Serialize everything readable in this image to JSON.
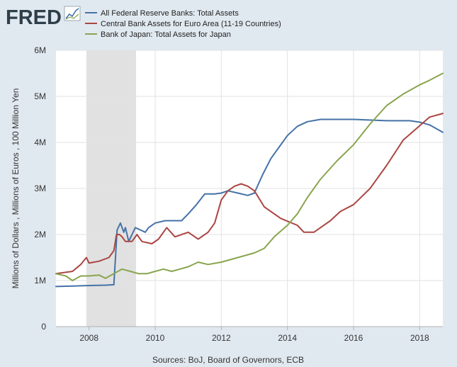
{
  "logo": {
    "text": "FRED",
    "mark": "fred-trend-chart-icon"
  },
  "chart_data": {
    "type": "line",
    "title": "",
    "xlabel": "",
    "ylabel": "Millions of Dollars , Millions of Euros , 100 Million Yen",
    "source": "Sources: BoJ, Board of Governors, ECB",
    "xlim": [
      2007.0,
      2018.7
    ],
    "ylim": [
      0,
      6000000
    ],
    "x_ticks": [
      2008,
      2010,
      2012,
      2014,
      2016,
      2018
    ],
    "x_tick_labels": [
      "2008",
      "2010",
      "2012",
      "2014",
      "2016",
      "2018"
    ],
    "y_ticks": [
      0,
      1000000,
      2000000,
      3000000,
      4000000,
      5000000,
      6000000
    ],
    "y_tick_labels": [
      "0",
      "1M",
      "2M",
      "3M",
      "4M",
      "5M",
      "6M"
    ],
    "grid": true,
    "legend_position": "top-left",
    "recessions": [
      [
        2007.92,
        2009.42
      ]
    ],
    "colors": {
      "background": "#e1e9f0",
      "plot_background": "#ffffff",
      "gridline": "#e2e2e2",
      "recession": "#e1e1e1"
    },
    "series": [
      {
        "name": "All Federal Reserve Banks: Total Assets",
        "color": "#4572a7",
        "points": [
          [
            2007.0,
            870000
          ],
          [
            2007.5,
            880000
          ],
          [
            2007.92,
            890000
          ],
          [
            2008.5,
            900000
          ],
          [
            2008.75,
            910000
          ],
          [
            2008.8,
            1500000
          ],
          [
            2008.85,
            2100000
          ],
          [
            2008.95,
            2250000
          ],
          [
            2009.05,
            2050000
          ],
          [
            2009.1,
            2150000
          ],
          [
            2009.2,
            1850000
          ],
          [
            2009.3,
            2000000
          ],
          [
            2009.4,
            2150000
          ],
          [
            2009.55,
            2100000
          ],
          [
            2009.7,
            2050000
          ],
          [
            2009.8,
            2150000
          ],
          [
            2010.0,
            2250000
          ],
          [
            2010.3,
            2300000
          ],
          [
            2010.8,
            2300000
          ],
          [
            2011.0,
            2450000
          ],
          [
            2011.25,
            2650000
          ],
          [
            2011.5,
            2880000
          ],
          [
            2011.8,
            2880000
          ],
          [
            2012.0,
            2900000
          ],
          [
            2012.2,
            2950000
          ],
          [
            2012.5,
            2900000
          ],
          [
            2012.8,
            2850000
          ],
          [
            2013.0,
            2900000
          ],
          [
            2013.25,
            3300000
          ],
          [
            2013.5,
            3650000
          ],
          [
            2013.75,
            3900000
          ],
          [
            2014.0,
            4150000
          ],
          [
            2014.3,
            4350000
          ],
          [
            2014.6,
            4450000
          ],
          [
            2015.0,
            4500000
          ],
          [
            2016.0,
            4500000
          ],
          [
            2017.0,
            4470000
          ],
          [
            2017.7,
            4470000
          ],
          [
            2018.0,
            4440000
          ],
          [
            2018.3,
            4380000
          ],
          [
            2018.7,
            4220000
          ]
        ]
      },
      {
        "name": "Central Bank Assets for Euro Area (11-19 Countries)",
        "color": "#aa4643",
        "points": [
          [
            2007.0,
            1150000
          ],
          [
            2007.5,
            1200000
          ],
          [
            2007.75,
            1350000
          ],
          [
            2007.92,
            1500000
          ],
          [
            2008.0,
            1380000
          ],
          [
            2008.3,
            1420000
          ],
          [
            2008.6,
            1500000
          ],
          [
            2008.75,
            1650000
          ],
          [
            2008.83,
            2000000
          ],
          [
            2008.92,
            2000000
          ],
          [
            2009.0,
            1950000
          ],
          [
            2009.1,
            1850000
          ],
          [
            2009.3,
            1850000
          ],
          [
            2009.45,
            2000000
          ],
          [
            2009.6,
            1850000
          ],
          [
            2009.9,
            1800000
          ],
          [
            2010.1,
            1900000
          ],
          [
            2010.35,
            2150000
          ],
          [
            2010.6,
            1950000
          ],
          [
            2011.0,
            2050000
          ],
          [
            2011.3,
            1900000
          ],
          [
            2011.6,
            2050000
          ],
          [
            2011.8,
            2250000
          ],
          [
            2012.0,
            2750000
          ],
          [
            2012.2,
            2950000
          ],
          [
            2012.4,
            3050000
          ],
          [
            2012.6,
            3100000
          ],
          [
            2012.8,
            3050000
          ],
          [
            2013.0,
            2950000
          ],
          [
            2013.3,
            2600000
          ],
          [
            2013.8,
            2350000
          ],
          [
            2014.3,
            2200000
          ],
          [
            2014.5,
            2050000
          ],
          [
            2014.8,
            2050000
          ],
          [
            2015.0,
            2150000
          ],
          [
            2015.3,
            2300000
          ],
          [
            2015.6,
            2500000
          ],
          [
            2016.0,
            2650000
          ],
          [
            2016.5,
            3000000
          ],
          [
            2017.0,
            3500000
          ],
          [
            2017.5,
            4050000
          ],
          [
            2017.9,
            4300000
          ],
          [
            2018.3,
            4550000
          ],
          [
            2018.7,
            4630000
          ]
        ]
      },
      {
        "name": "Bank of Japan: Total Assets for Japan",
        "color": "#89a54e",
        "points": [
          [
            2007.0,
            1150000
          ],
          [
            2007.3,
            1100000
          ],
          [
            2007.5,
            1000000
          ],
          [
            2007.75,
            1100000
          ],
          [
            2008.0,
            1100000
          ],
          [
            2008.3,
            1120000
          ],
          [
            2008.5,
            1050000
          ],
          [
            2008.75,
            1150000
          ],
          [
            2009.0,
            1250000
          ],
          [
            2009.25,
            1200000
          ],
          [
            2009.5,
            1150000
          ],
          [
            2009.75,
            1150000
          ],
          [
            2010.0,
            1200000
          ],
          [
            2010.25,
            1250000
          ],
          [
            2010.5,
            1200000
          ],
          [
            2010.75,
            1250000
          ],
          [
            2011.0,
            1300000
          ],
          [
            2011.3,
            1400000
          ],
          [
            2011.6,
            1350000
          ],
          [
            2012.0,
            1400000
          ],
          [
            2012.5,
            1500000
          ],
          [
            2013.0,
            1600000
          ],
          [
            2013.3,
            1700000
          ],
          [
            2013.6,
            1950000
          ],
          [
            2014.0,
            2200000
          ],
          [
            2014.3,
            2450000
          ],
          [
            2014.6,
            2800000
          ],
          [
            2015.0,
            3200000
          ],
          [
            2015.5,
            3600000
          ],
          [
            2016.0,
            3950000
          ],
          [
            2016.5,
            4400000
          ],
          [
            2017.0,
            4800000
          ],
          [
            2017.5,
            5050000
          ],
          [
            2018.0,
            5250000
          ],
          [
            2018.3,
            5350000
          ],
          [
            2018.7,
            5500000
          ]
        ]
      }
    ]
  }
}
